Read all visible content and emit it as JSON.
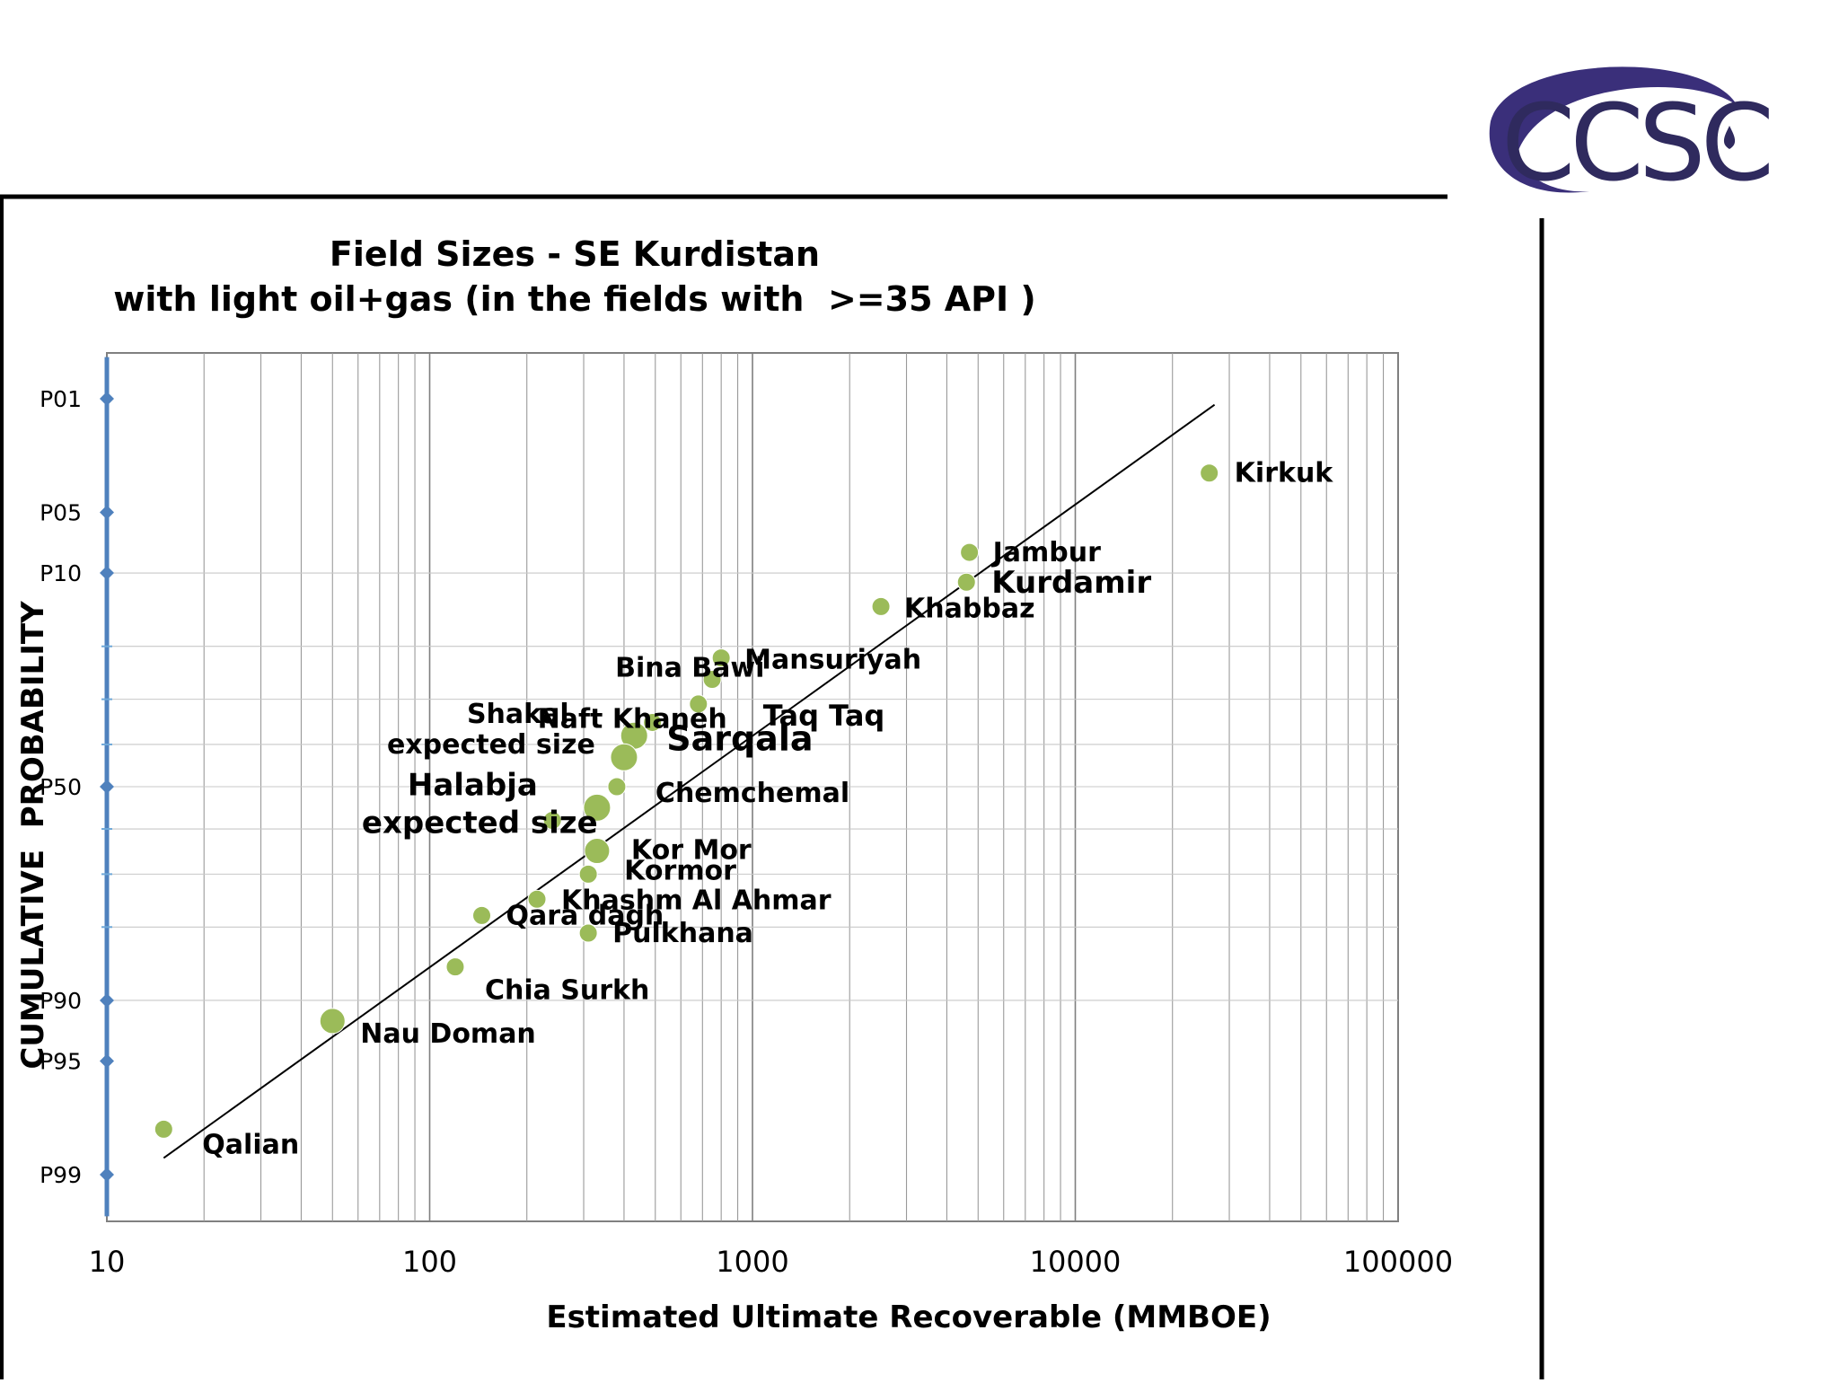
{
  "logo": {
    "text": "CCSC",
    "colors": {
      "swoosh": "#3a2f7a",
      "text": "#2f2a5e"
    }
  },
  "chart_data": {
    "type": "scatter",
    "title": "Field Sizes - SE Kurdistan",
    "subtitle": "with light oil+gas (in the fields with  >=35 API )",
    "xlabel": "Estimated Ultimate Recoverable (MMBOE)",
    "ylabel": "CUMULATIVE  PROBABILITY",
    "x_scale": "log",
    "xlim": [
      10,
      100000
    ],
    "x_ticks": [
      "10",
      "100",
      "1000",
      "10000",
      "100000"
    ],
    "y_scale": "normal-probability",
    "y_ticks": [
      "P01",
      "P05",
      "P10",
      "P50",
      "P90",
      "P95",
      "P99"
    ],
    "grid": true,
    "marker_color": "#9bbb59",
    "axis_color": "#4f81bd",
    "points": [
      {
        "label": "Kirkuk",
        "x": 26000,
        "y": 3
      },
      {
        "label": "Jambur",
        "x": 4700,
        "y": 8
      },
      {
        "label": "Kurdamir",
        "x": 4600,
        "y": 11
      },
      {
        "label": "Khabbaz",
        "x": 2500,
        "y": 14
      },
      {
        "label": "Mansuriyah",
        "x": 800,
        "y": 22
      },
      {
        "label": "Bina Bawi",
        "x": 750,
        "y": 26
      },
      {
        "label": "Taq Taq",
        "x": 680,
        "y": 31
      },
      {
        "label": "Naft Khaneh",
        "x": 490,
        "y": 35
      },
      {
        "label": "Sarqala",
        "x": 430,
        "y": 38
      },
      {
        "label": "Shakal expected size",
        "x": 400,
        "y": 43
      },
      {
        "label": "Chemchemal",
        "x": 380,
        "y": 50
      },
      {
        "label": "Halabja expected size",
        "x": 330,
        "y": 55
      },
      {
        "label": "",
        "x": 240,
        "y": 58
      },
      {
        "label": "Kor Mor",
        "x": 330,
        "y": 65
      },
      {
        "label": "Kormor",
        "x": 310,
        "y": 70
      },
      {
        "label": "Khashm Al Ahmar",
        "x": 215,
        "y": 75
      },
      {
        "label": "Qara dagh",
        "x": 145,
        "y": 78
      },
      {
        "label": "Pulkhana",
        "x": 310,
        "y": 81
      },
      {
        "label": "Chia Surkh",
        "x": 120,
        "y": 86
      },
      {
        "label": "Nau Doman",
        "x": 50,
        "y": 92
      },
      {
        "label": "Qalian",
        "x": 15,
        "y": 98
      }
    ],
    "trendline": {
      "from": {
        "x": 15,
        "y": 98.7
      },
      "to": {
        "x": 27000,
        "y": 1.1
      }
    }
  }
}
